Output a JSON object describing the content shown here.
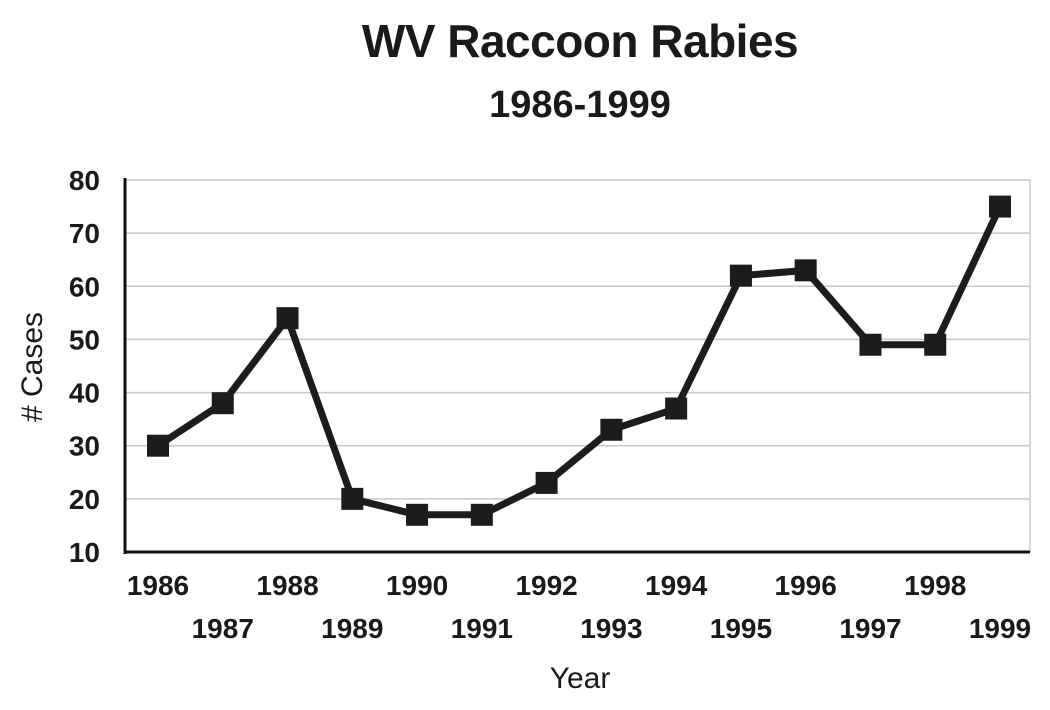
{
  "chart_data": {
    "type": "line",
    "title": "WV Raccoon Rabies",
    "subtitle": "1986-1999",
    "xlabel": "Year",
    "ylabel": "# Cases",
    "categories": [
      "1986",
      "1987",
      "1988",
      "1989",
      "1990",
      "1991",
      "1992",
      "1993",
      "1994",
      "1995",
      "1996",
      "1997",
      "1998",
      "1999"
    ],
    "series": [
      {
        "values": [
          30,
          38,
          54,
          20,
          17,
          17,
          23,
          33,
          37,
          62,
          63,
          49,
          49,
          75
        ]
      }
    ],
    "ylim": [
      10,
      80
    ],
    "yticks": [
      10,
      20,
      30,
      40,
      50,
      60,
      70,
      80
    ],
    "grid": true,
    "legend": "none",
    "colors": {
      "line": "#1c1c1c",
      "grid": "#c8c8c8",
      "axis": "#111111"
    },
    "marker": "square"
  }
}
